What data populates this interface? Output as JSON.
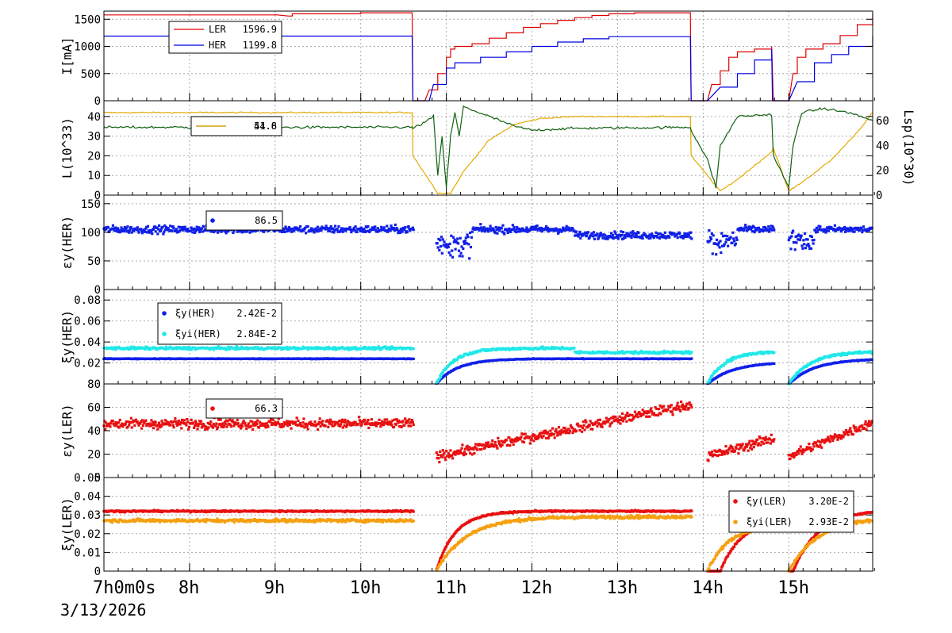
{
  "colors": {
    "red": "#e00000",
    "blue": "#0000e0",
    "gold": "#e6a800",
    "green": "#106010",
    "blue_pts": "#1020e8",
    "cyan_pts": "#20e8e8",
    "red_pts": "#e81010",
    "orange_pts": "#f5a010",
    "grid": "#aaaaaa"
  },
  "chart_data": {
    "type": "line",
    "date": "3/13/2026",
    "x_ticks": [
      {
        "h": 7,
        "label": "7h0m0s"
      },
      {
        "h": 8,
        "label": "8h"
      },
      {
        "h": 9,
        "label": "9h"
      },
      {
        "h": 10,
        "label": "10h"
      },
      {
        "h": 11,
        "label": "11h"
      },
      {
        "h": 12,
        "label": "12h"
      },
      {
        "h": 13,
        "label": "13h"
      },
      {
        "h": 14,
        "label": "14h"
      },
      {
        "h": 15,
        "label": "15h"
      }
    ],
    "xlim": [
      7.0,
      15.98
    ],
    "panels": [
      {
        "id": "current",
        "ylabel": "I[mA]",
        "ylim": [
          0,
          1650
        ],
        "yticks": [
          0,
          500,
          1000,
          1500
        ],
        "legend": [
          {
            "label": "LER",
            "value": "1596.9",
            "color_key": "red"
          },
          {
            "label": "HER",
            "value": "1199.8",
            "color_key": "blue"
          }
        ]
      },
      {
        "id": "luminosity",
        "ylabel": "L(10^33)",
        "ylim": [
          0,
          48
        ],
        "yticks": [
          0,
          10,
          20,
          30,
          40
        ],
        "ylabel_right": "Lsp(10^30)",
        "ylim_right": [
          0,
          76
        ],
        "yticks_right": [
          0,
          20,
          40,
          60
        ],
        "legend": [
          {
            "label": "",
            "value": "54.6",
            "color_key": "green"
          },
          {
            "label": "",
            "value": "41.8",
            "color_key": "gold"
          }
        ]
      },
      {
        "id": "ey_her",
        "ylabel": "εy(HER)",
        "ylim": [
          0,
          165
        ],
        "yticks": [
          0,
          50,
          100,
          150
        ],
        "legend": [
          {
            "label": "",
            "value": "86.5",
            "color_key": "blue_pts"
          }
        ]
      },
      {
        "id": "xi_her",
        "ylabel": "ξy(HER)",
        "ylim": [
          0,
          0.09
        ],
        "yticks": [
          0.02,
          0.04,
          0.06,
          0.08
        ],
        "ytick_labels": [
          "0.02",
          "0.04",
          "0.06",
          "0.08"
        ],
        "legend": [
          {
            "label": "ξy(HER)",
            "value": "2.42E-2",
            "color_key": "blue_pts"
          },
          {
            "label": "ξyi(HER)",
            "value": "2.84E-2",
            "color_key": "cyan_pts"
          }
        ]
      },
      {
        "id": "ey_ler",
        "ylabel": "εy(LER)",
        "ylim": [
          0,
          80
        ],
        "yticks": [
          0,
          20,
          40,
          60,
          80
        ],
        "legend": [
          {
            "label": "",
            "value": "66.3",
            "color_key": "red_pts"
          }
        ]
      },
      {
        "id": "xi_ler",
        "ylabel": "ξy(LER)",
        "ylim": [
          0,
          0.05
        ],
        "yticks": [
          0,
          0.01,
          0.02,
          0.03,
          0.04,
          0.05
        ],
        "ytick_labels": [
          "0",
          "0.01",
          "0.02",
          "0.03",
          "0.04",
          "0.05"
        ],
        "legend": [
          {
            "label": "ξy(LER)",
            "value": "3.20E-2",
            "color_key": "red_pts"
          },
          {
            "label": "ξyi(LER)",
            "value": "2.93E-2",
            "color_key": "orange_pts"
          }
        ]
      }
    ],
    "current_series": {
      "ler": [
        [
          7.0,
          1580
        ],
        [
          9.0,
          1585
        ],
        [
          9.15,
          1560
        ],
        [
          9.2,
          1600
        ],
        [
          10.0,
          1620
        ],
        [
          10.6,
          1630
        ],
        [
          10.61,
          0
        ],
        [
          10.75,
          0
        ],
        [
          10.8,
          200
        ],
        [
          10.9,
          500
        ],
        [
          11.0,
          800
        ],
        [
          11.05,
          950
        ],
        [
          11.1,
          1000
        ],
        [
          11.3,
          1050
        ],
        [
          11.5,
          1150
        ],
        [
          11.7,
          1250
        ],
        [
          11.9,
          1350
        ],
        [
          12.1,
          1420
        ],
        [
          12.3,
          1480
        ],
        [
          12.5,
          1530
        ],
        [
          12.7,
          1570
        ],
        [
          12.9,
          1600
        ],
        [
          13.2,
          1620
        ],
        [
          13.85,
          1630
        ],
        [
          13.86,
          0
        ],
        [
          14.05,
          0
        ],
        [
          14.1,
          300
        ],
        [
          14.2,
          550
        ],
        [
          14.3,
          800
        ],
        [
          14.4,
          900
        ],
        [
          14.6,
          950
        ],
        [
          14.8,
          1000
        ],
        [
          14.82,
          0
        ],
        [
          15.0,
          0
        ],
        [
          15.05,
          500
        ],
        [
          15.1,
          800
        ],
        [
          15.2,
          950
        ],
        [
          15.4,
          1050
        ],
        [
          15.6,
          1200
        ],
        [
          15.8,
          1400
        ],
        [
          15.98,
          1600
        ]
      ],
      "her": [
        [
          7.0,
          1190
        ],
        [
          10.6,
          1190
        ],
        [
          10.61,
          0
        ],
        [
          10.8,
          0
        ],
        [
          10.85,
          300
        ],
        [
          11.0,
          600
        ],
        [
          11.1,
          700
        ],
        [
          11.4,
          800
        ],
        [
          11.7,
          900
        ],
        [
          12.0,
          1000
        ],
        [
          12.3,
          1080
        ],
        [
          12.6,
          1140
        ],
        [
          12.9,
          1180
        ],
        [
          13.85,
          1190
        ],
        [
          13.86,
          0
        ],
        [
          14.05,
          0
        ],
        [
          14.2,
          250
        ],
        [
          14.4,
          500
        ],
        [
          14.6,
          750
        ],
        [
          14.8,
          950
        ],
        [
          14.81,
          0
        ],
        [
          15.0,
          0
        ],
        [
          15.1,
          350
        ],
        [
          15.3,
          700
        ],
        [
          15.5,
          850
        ],
        [
          15.7,
          1000
        ],
        [
          15.98,
          1190
        ]
      ]
    },
    "lum_series": {
      "l": [
        [
          7.0,
          34.5
        ],
        [
          10.6,
          34.5
        ],
        [
          10.61,
          34
        ],
        [
          10.75,
          37
        ],
        [
          10.85,
          40
        ],
        [
          10.9,
          10
        ],
        [
          10.95,
          30
        ],
        [
          11.0,
          4
        ],
        [
          11.05,
          30
        ],
        [
          11.1,
          42
        ],
        [
          11.15,
          30
        ],
        [
          11.2,
          45
        ],
        [
          11.5,
          40
        ],
        [
          11.8,
          35
        ],
        [
          12.0,
          33
        ],
        [
          12.5,
          34
        ],
        [
          13.85,
          34.5
        ],
        [
          13.86,
          33
        ],
        [
          14.05,
          18
        ],
        [
          14.15,
          4
        ],
        [
          14.2,
          25
        ],
        [
          14.4,
          40
        ],
        [
          14.8,
          41
        ],
        [
          14.82,
          20
        ],
        [
          15.0,
          4
        ],
        [
          15.05,
          25
        ],
        [
          15.15,
          42
        ],
        [
          15.4,
          44
        ],
        [
          15.7,
          42
        ],
        [
          15.98,
          38
        ]
      ],
      "lsp": [
        [
          7.0,
          42
        ],
        [
          10.6,
          42
        ],
        [
          10.61,
          20
        ],
        [
          10.9,
          1
        ],
        [
          11.05,
          1
        ],
        [
          11.2,
          12
        ],
        [
          11.5,
          28
        ],
        [
          11.8,
          36
        ],
        [
          12.1,
          39
        ],
        [
          12.5,
          40
        ],
        [
          13.85,
          40
        ],
        [
          13.86,
          20
        ],
        [
          14.2,
          2
        ],
        [
          14.4,
          8
        ],
        [
          14.6,
          15
        ],
        [
          14.8,
          22
        ],
        [
          14.82,
          24
        ],
        [
          15.0,
          2
        ],
        [
          15.2,
          8
        ],
        [
          15.5,
          18
        ],
        [
          15.8,
          32
        ],
        [
          15.98,
          42
        ]
      ]
    }
  }
}
